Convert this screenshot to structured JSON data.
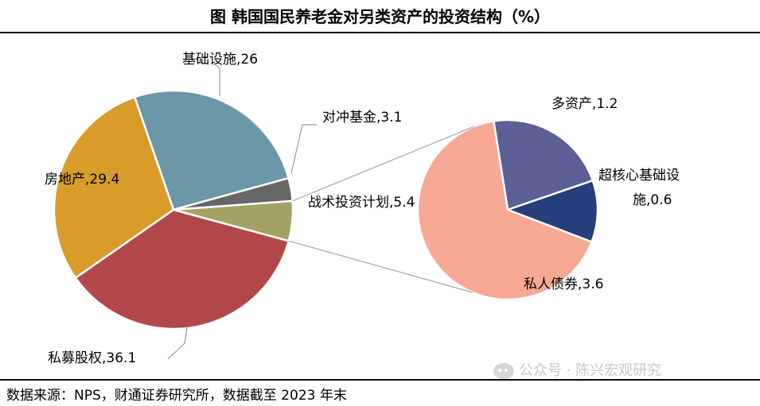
{
  "title": "图  韩国国民养老金对另类资产的投资结构（%）",
  "source": "数据来源：NPS，财通证券研究所，数据截至 2023 年末",
  "watermark": "公众号 · 陈兴宏观研究",
  "chart_data": [
    {
      "type": "pie",
      "name": "main",
      "slices": [
        {
          "name": "基础设施",
          "value": 26,
          "label": "基础设施,26",
          "color": "#6b97a6"
        },
        {
          "name": "对冲基金",
          "value": 3.1,
          "label": "对冲基金,3.1",
          "color": "#666666"
        },
        {
          "name": "战术投资计划",
          "value": 5.4,
          "label": "战术投资计划,5.4",
          "color": "#a3a265"
        },
        {
          "name": "私募股权",
          "value": 36.1,
          "label": "私募股权,36.1",
          "color": "#b2474a"
        },
        {
          "name": "房地产",
          "value": 29.4,
          "label": "房地产,29.4",
          "color": "#d79c29"
        }
      ]
    },
    {
      "type": "pie",
      "name": "breakdown",
      "parent": "战术投资计划",
      "slices": [
        {
          "name": "多资产",
          "value": 1.2,
          "label": "多资产,1.2",
          "color": "#5b5f96"
        },
        {
          "name": "超核心基础设施",
          "value": 0.6,
          "label_lines": [
            "超核心基础设",
            "施,0.6"
          ],
          "color": "#243f7c"
        },
        {
          "name": "私人债券",
          "value": 3.6,
          "label": "私人债券,3.6",
          "color": "#f7a995"
        }
      ]
    }
  ]
}
